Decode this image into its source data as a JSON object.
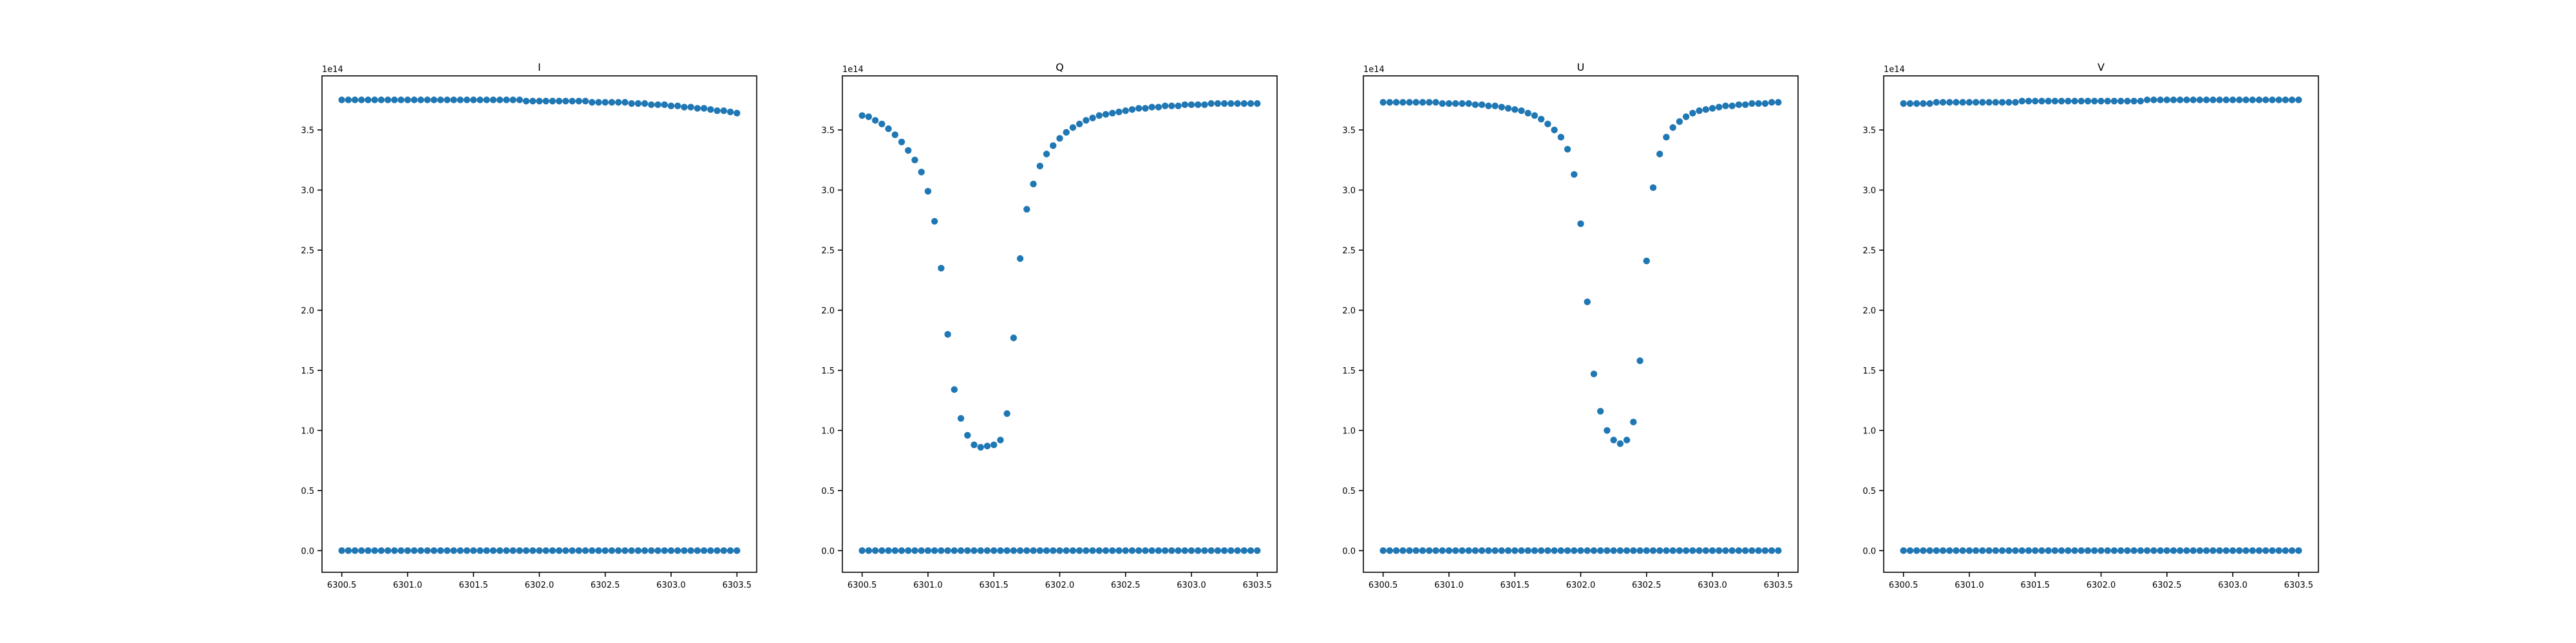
{
  "chart_data": [
    {
      "type": "scatter",
      "title": "I",
      "y_offset_label": "1e14",
      "xlim": [
        6300.35,
        6303.65
      ],
      "ylim": [
        -0.18,
        3.95
      ],
      "x_range": [
        6300.5,
        6303.5
      ],
      "points": 61,
      "x_ticks": [
        "6300.5",
        "6301.0",
        "6301.5",
        "6302.0",
        "6302.5",
        "6303.0",
        "6303.5"
      ],
      "y_ticks": [
        "0.0",
        "0.5",
        "1.0",
        "1.5",
        "2.0",
        "2.5",
        "3.0",
        "3.5"
      ],
      "color": "#1f77b4",
      "series": [
        {
          "values": [
            3.75,
            3.75,
            3.75,
            3.75,
            3.75,
            3.75,
            3.75,
            3.75,
            3.75,
            3.75,
            3.75,
            3.75,
            3.75,
            3.75,
            3.75,
            3.75,
            3.75,
            3.75,
            3.75,
            3.75,
            3.75,
            3.75,
            3.75,
            3.75,
            3.75,
            3.75,
            3.75,
            3.75,
            3.74,
            3.74,
            3.74,
            3.74,
            3.74,
            3.74,
            3.74,
            3.74,
            3.74,
            3.74,
            3.73,
            3.73,
            3.73,
            3.73,
            3.73,
            3.73,
            3.72,
            3.72,
            3.72,
            3.71,
            3.71,
            3.71,
            3.7,
            3.7,
            3.69,
            3.69,
            3.68,
            3.68,
            3.67,
            3.66,
            3.66,
            3.65,
            3.64
          ]
        },
        {
          "values": [
            0,
            0,
            0,
            0,
            0,
            0,
            0,
            0,
            0,
            0,
            0,
            0,
            0,
            0,
            0,
            0,
            0,
            0,
            0,
            0,
            0,
            0,
            0,
            0,
            0,
            0,
            0,
            0,
            0,
            0,
            0,
            0,
            0,
            0,
            0,
            0,
            0,
            0,
            0,
            0,
            0,
            0,
            0,
            0,
            0,
            0,
            0,
            0,
            0,
            0,
            0,
            0,
            0,
            0,
            0,
            0,
            0,
            0,
            0,
            0,
            0
          ]
        }
      ]
    },
    {
      "type": "scatter",
      "title": "Q",
      "y_offset_label": "1e14",
      "xlim": [
        6300.35,
        6303.65
      ],
      "ylim": [
        -0.18,
        3.95
      ],
      "x_range": [
        6300.5,
        6303.5
      ],
      "points": 61,
      "x_ticks": [
        "6300.5",
        "6301.0",
        "6301.5",
        "6302.0",
        "6302.5",
        "6303.0",
        "6303.5"
      ],
      "y_ticks": [
        "0.0",
        "0.5",
        "1.0",
        "1.5",
        "2.0",
        "2.5",
        "3.0",
        "3.5"
      ],
      "color": "#1f77b4",
      "series": [
        {
          "values": [
            3.62,
            3.61,
            3.58,
            3.55,
            3.51,
            3.46,
            3.4,
            3.33,
            3.25,
            3.15,
            2.99,
            2.74,
            2.35,
            1.8,
            1.34,
            1.1,
            0.96,
            0.88,
            0.86,
            0.87,
            0.88,
            0.92,
            1.14,
            1.77,
            2.43,
            2.84,
            3.05,
            3.2,
            3.3,
            3.37,
            3.43,
            3.48,
            3.52,
            3.55,
            3.58,
            3.6,
            3.62,
            3.63,
            3.64,
            3.65,
            3.66,
            3.67,
            3.68,
            3.68,
            3.69,
            3.69,
            3.7,
            3.7,
            3.7,
            3.71,
            3.71,
            3.71,
            3.71,
            3.72,
            3.72,
            3.72,
            3.72,
            3.72,
            3.72,
            3.72,
            3.72
          ]
        },
        {
          "values": [
            0,
            0,
            0,
            0,
            0,
            0,
            0,
            0,
            0,
            0,
            0,
            0,
            0,
            0,
            0,
            0,
            0,
            0,
            0,
            0,
            0,
            0,
            0,
            0,
            0,
            0,
            0,
            0,
            0,
            0,
            0,
            0,
            0,
            0,
            0,
            0,
            0,
            0,
            0,
            0,
            0,
            0,
            0,
            0,
            0,
            0,
            0,
            0,
            0,
            0,
            0,
            0,
            0,
            0,
            0,
            0,
            0,
            0,
            0,
            0,
            0
          ]
        }
      ]
    },
    {
      "type": "scatter",
      "title": "U",
      "y_offset_label": "1e14",
      "xlim": [
        6300.35,
        6303.65
      ],
      "ylim": [
        -0.18,
        3.95
      ],
      "x_range": [
        6300.5,
        6303.5
      ],
      "points": 61,
      "x_ticks": [
        "6300.5",
        "6301.0",
        "6301.5",
        "6302.0",
        "6302.5",
        "6303.0",
        "6303.5"
      ],
      "y_ticks": [
        "0.0",
        "0.5",
        "1.0",
        "1.5",
        "2.0",
        "2.5",
        "3.0",
        "3.5"
      ],
      "color": "#1f77b4",
      "series": [
        {
          "values": [
            3.73,
            3.73,
            3.73,
            3.73,
            3.73,
            3.73,
            3.73,
            3.73,
            3.73,
            3.72,
            3.72,
            3.72,
            3.72,
            3.72,
            3.71,
            3.71,
            3.7,
            3.7,
            3.69,
            3.68,
            3.67,
            3.66,
            3.64,
            3.62,
            3.59,
            3.55,
            3.5,
            3.44,
            3.34,
            3.13,
            2.72,
            2.07,
            1.47,
            1.16,
            1.0,
            0.92,
            0.89,
            0.92,
            1.07,
            1.58,
            2.41,
            3.02,
            3.3,
            3.44,
            3.52,
            3.57,
            3.61,
            3.64,
            3.66,
            3.67,
            3.68,
            3.69,
            3.7,
            3.7,
            3.71,
            3.71,
            3.72,
            3.72,
            3.72,
            3.73,
            3.73
          ]
        },
        {
          "values": [
            0,
            0,
            0,
            0,
            0,
            0,
            0,
            0,
            0,
            0,
            0,
            0,
            0,
            0,
            0,
            0,
            0,
            0,
            0,
            0,
            0,
            0,
            0,
            0,
            0,
            0,
            0,
            0,
            0,
            0,
            0,
            0,
            0,
            0,
            0,
            0,
            0,
            0,
            0,
            0,
            0,
            0,
            0,
            0,
            0,
            0,
            0,
            0,
            0,
            0,
            0,
            0,
            0,
            0,
            0,
            0,
            0,
            0,
            0,
            0,
            0
          ]
        }
      ]
    },
    {
      "type": "scatter",
      "title": "V",
      "y_offset_label": "1e14",
      "xlim": [
        6300.35,
        6303.65
      ],
      "ylim": [
        -0.18,
        3.95
      ],
      "x_range": [
        6300.5,
        6303.5
      ],
      "points": 61,
      "x_ticks": [
        "6300.5",
        "6301.0",
        "6301.5",
        "6302.0",
        "6302.5",
        "6303.0",
        "6303.5"
      ],
      "y_ticks": [
        "0.0",
        "0.5",
        "1.0",
        "1.5",
        "2.0",
        "2.5",
        "3.0",
        "3.5"
      ],
      "color": "#1f77b4",
      "series": [
        {
          "values": [
            3.72,
            3.72,
            3.72,
            3.72,
            3.72,
            3.73,
            3.73,
            3.73,
            3.73,
            3.73,
            3.73,
            3.73,
            3.73,
            3.73,
            3.73,
            3.73,
            3.73,
            3.73,
            3.74,
            3.74,
            3.74,
            3.74,
            3.74,
            3.74,
            3.74,
            3.74,
            3.74,
            3.74,
            3.74,
            3.74,
            3.74,
            3.74,
            3.74,
            3.74,
            3.74,
            3.74,
            3.74,
            3.75,
            3.75,
            3.75,
            3.75,
            3.75,
            3.75,
            3.75,
            3.75,
            3.75,
            3.75,
            3.75,
            3.75,
            3.75,
            3.75,
            3.75,
            3.75,
            3.75,
            3.75,
            3.75,
            3.75,
            3.75,
            3.75,
            3.75,
            3.75
          ]
        },
        {
          "values": [
            0,
            0,
            0,
            0,
            0,
            0,
            0,
            0,
            0,
            0,
            0,
            0,
            0,
            0,
            0,
            0,
            0,
            0,
            0,
            0,
            0,
            0,
            0,
            0,
            0,
            0,
            0,
            0,
            0,
            0,
            0,
            0,
            0,
            0,
            0,
            0,
            0,
            0,
            0,
            0,
            0,
            0,
            0,
            0,
            0,
            0,
            0,
            0,
            0,
            0,
            0,
            0,
            0,
            0,
            0,
            0,
            0,
            0,
            0,
            0,
            0
          ]
        }
      ]
    }
  ]
}
